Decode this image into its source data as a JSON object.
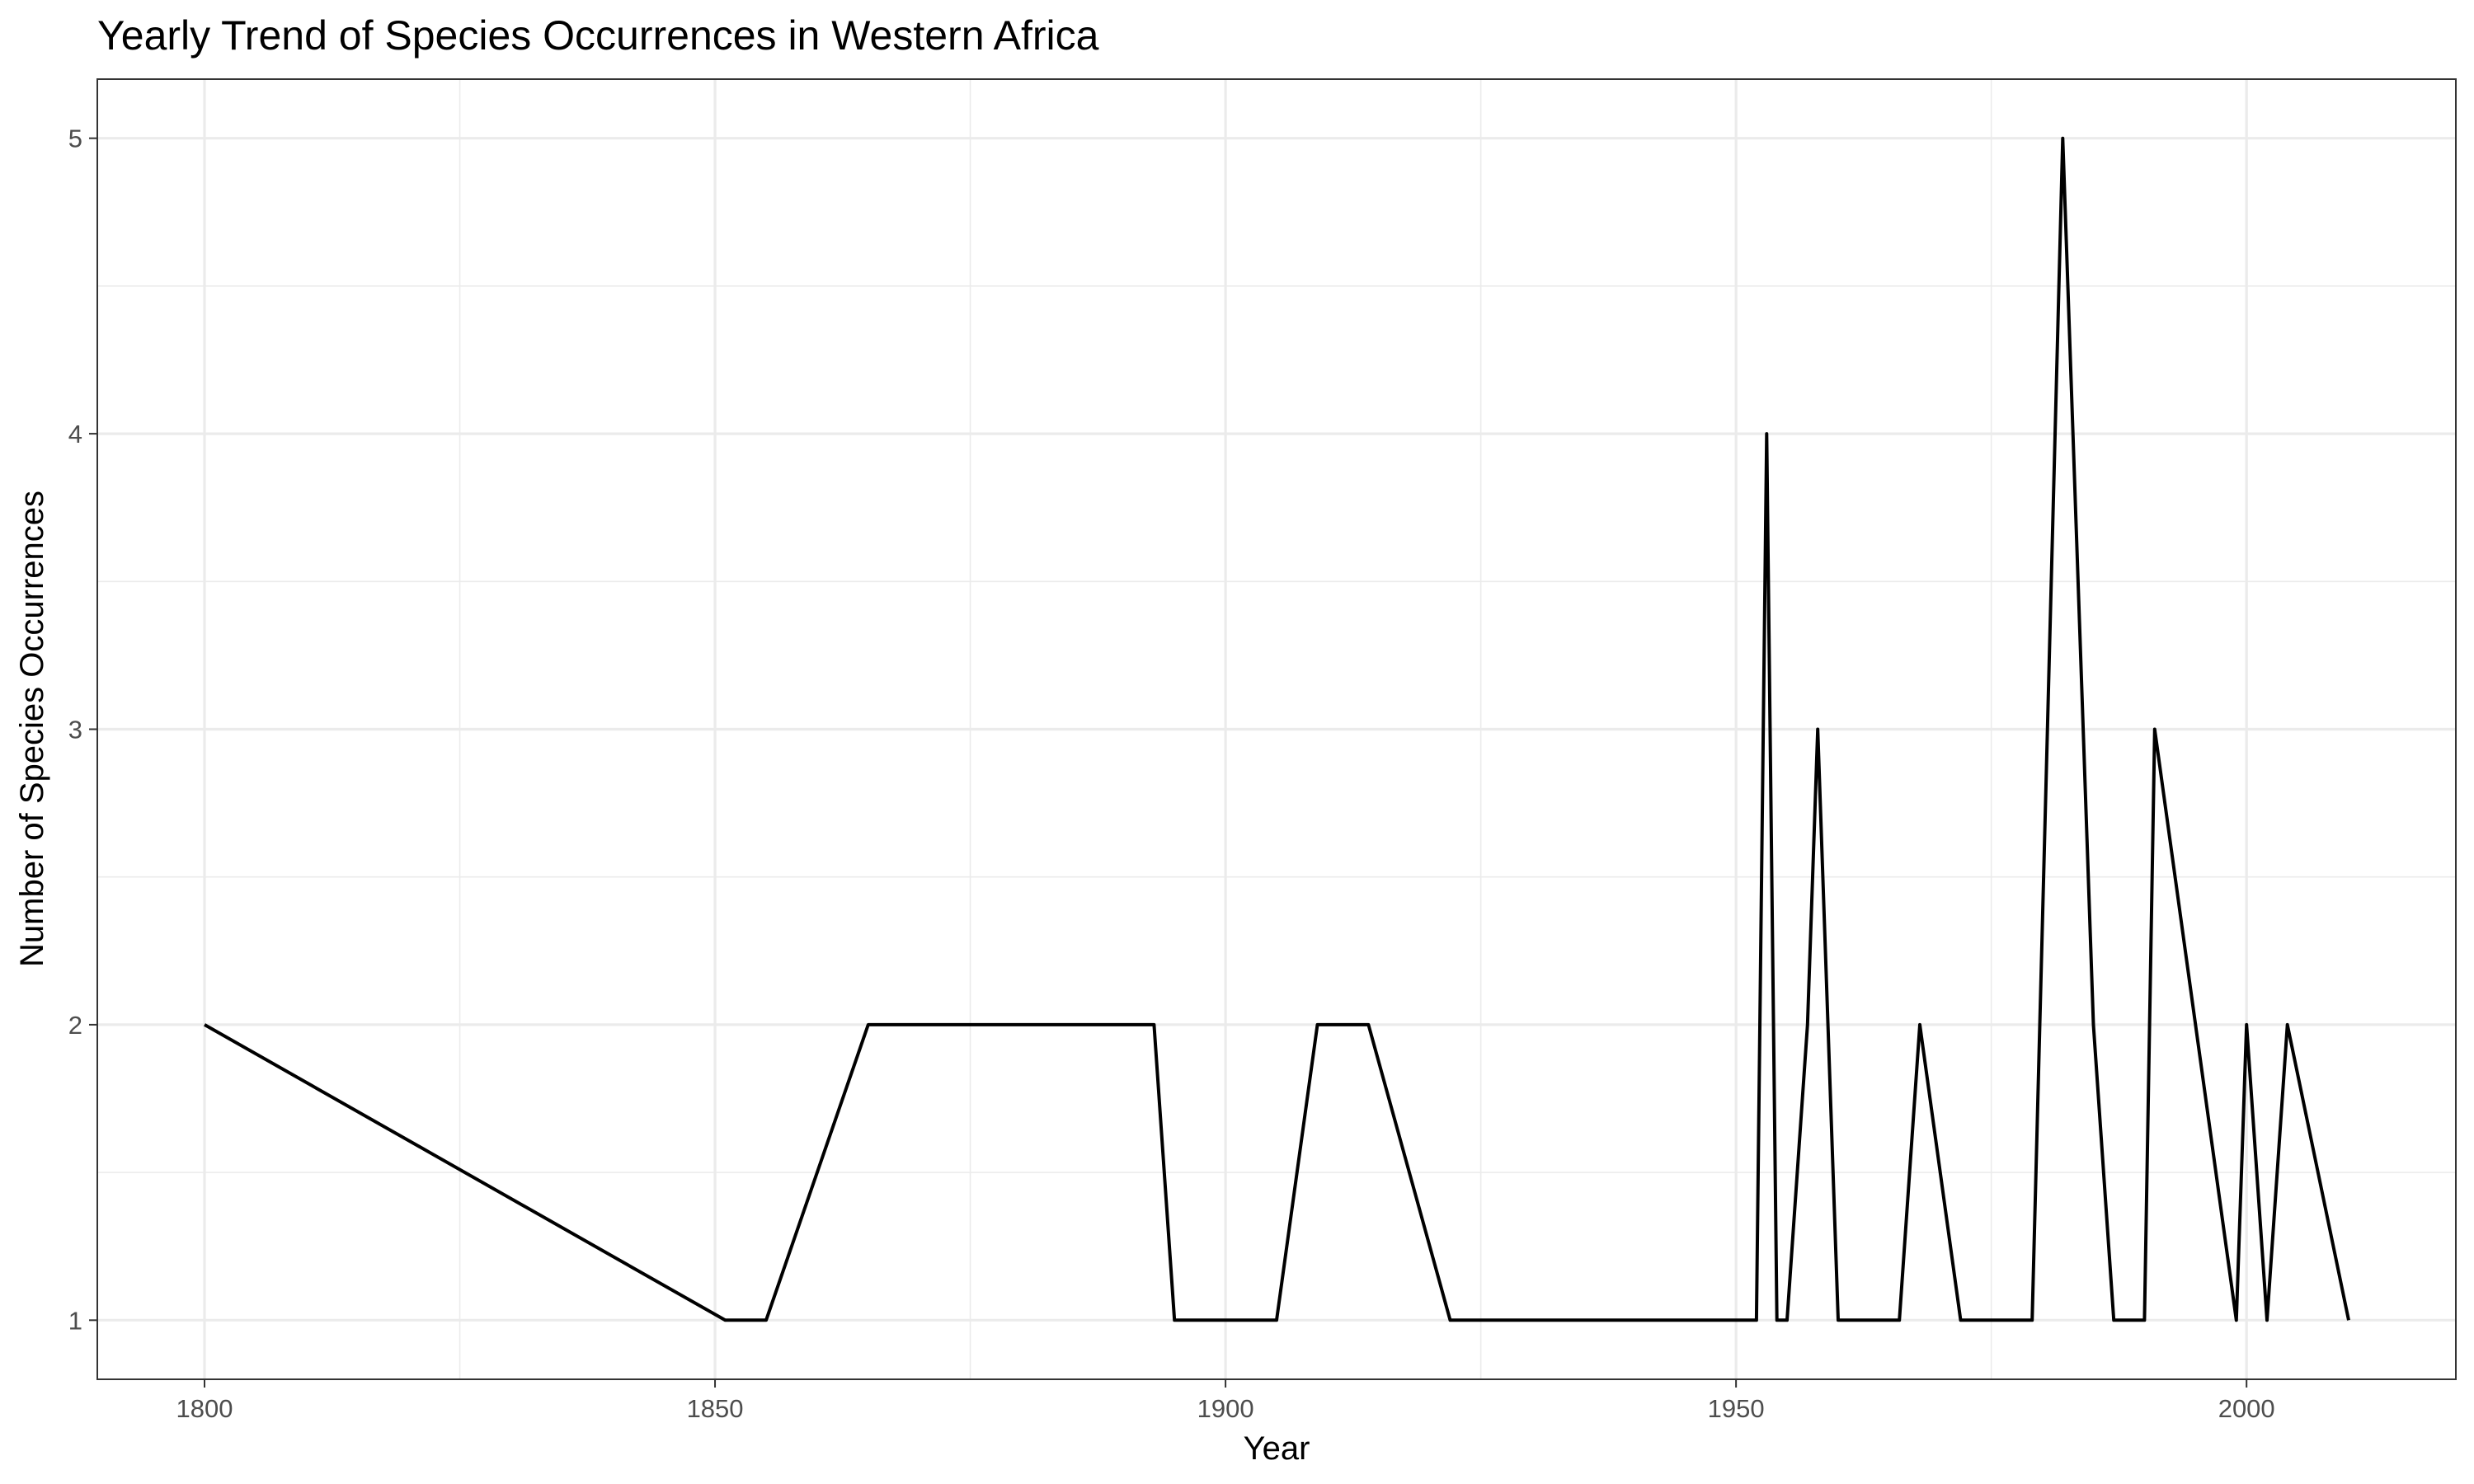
{
  "chart_data": {
    "type": "line",
    "title": "Yearly Trend of Species Occurrences in Western Africa",
    "xlabel": "Year",
    "ylabel": "Number of Species Occurrences",
    "xlim": [
      1789.5,
      2020.5
    ],
    "ylim": [
      0.8,
      5.2
    ],
    "x_ticks": [
      1800,
      1850,
      1900,
      1950,
      2000
    ],
    "y_ticks": [
      1,
      2,
      3,
      4,
      5
    ],
    "x_minor_ticks": [
      1825,
      1875,
      1925,
      1975
    ],
    "y_minor_ticks": [
      1.5,
      2.5,
      3.5,
      4.5
    ],
    "grid": true,
    "legend": "none",
    "series": [
      {
        "color": "#000000",
        "x": [
          1800,
          1851,
          1855,
          1865,
          1893,
          1895,
          1905,
          1909,
          1914,
          1922,
          1952,
          1953,
          1954,
          1955,
          1957,
          1958,
          1960,
          1966,
          1968,
          1972,
          1979,
          1982,
          1985,
          1987,
          1990,
          1991,
          1999,
          2000,
          2002,
          2004,
          2010
        ],
        "y": [
          2,
          1,
          1,
          2,
          2,
          1,
          1,
          2,
          2,
          1,
          1,
          4,
          1,
          1,
          2,
          3,
          1,
          1,
          2,
          1,
          1,
          5,
          2,
          1,
          1,
          3,
          1,
          2,
          1,
          2,
          1
        ]
      }
    ]
  }
}
